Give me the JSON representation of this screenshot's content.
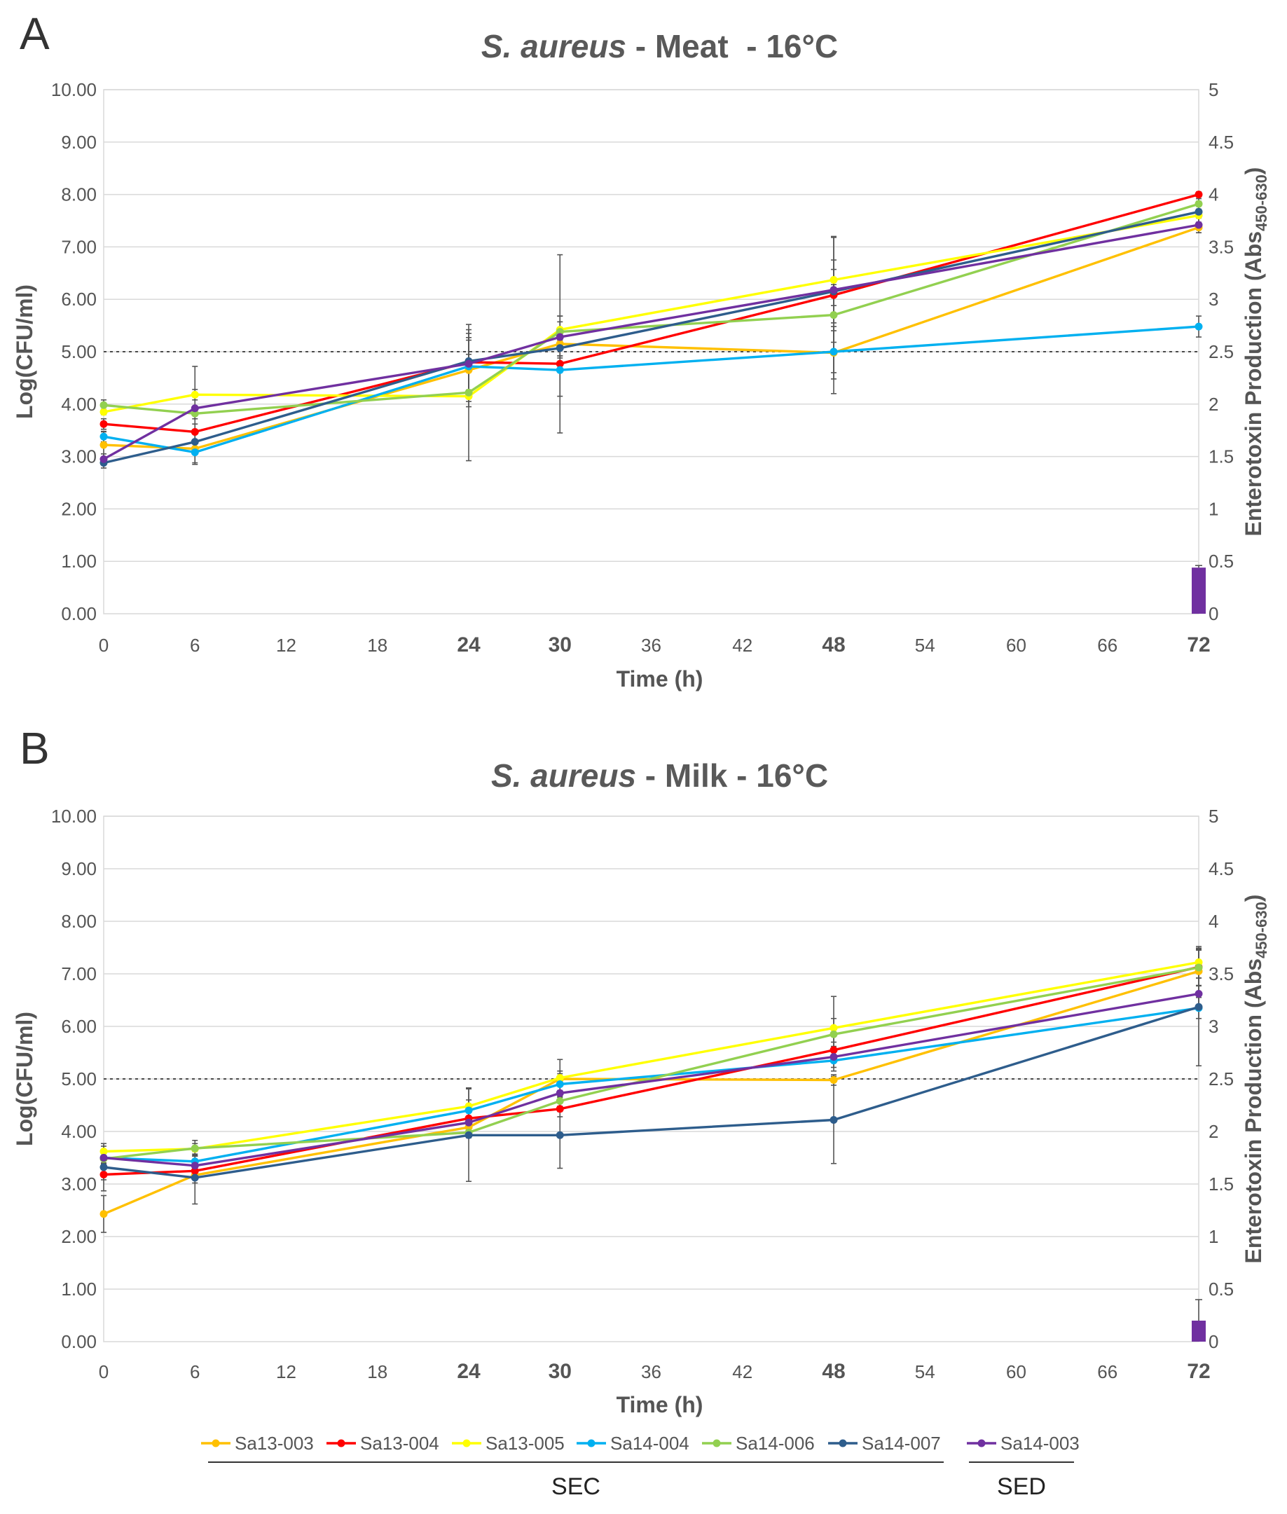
{
  "legend": [
    {
      "name": "Sa13-003",
      "color": "#FFC000"
    },
    {
      "name": "Sa13-004",
      "color": "#FF0000"
    },
    {
      "name": "Sa13-005",
      "color": "#FFFF00"
    },
    {
      "name": "Sa14-004",
      "color": "#00B0F0"
    },
    {
      "name": "Sa14-006",
      "color": "#92D050"
    },
    {
      "name": "Sa14-007",
      "color": "#2E5D8C"
    },
    {
      "name": "Sa14-003",
      "color": "#7030A0"
    }
  ],
  "groups": [
    {
      "label": "SEC",
      "members": [
        "Sa13-003",
        "Sa13-004",
        "Sa13-005",
        "Sa14-004",
        "Sa14-006",
        "Sa14-007"
      ]
    },
    {
      "label": "SED",
      "members": [
        "Sa14-003"
      ]
    }
  ],
  "chart_data": [
    {
      "panel": "A",
      "type": "line",
      "title_italic": "S. aureus",
      "title_rest": " - Meat  - 16°C",
      "xlabel": "Time (h)",
      "ylabel": "Log(CFU/ml)",
      "y2label_prefix": "Enterotoxin Production (Abs",
      "y2label_sub": "450-630",
      "y2label_suffix": ")",
      "xlim": [
        0,
        72
      ],
      "ylim": [
        0,
        10
      ],
      "y2lim": [
        0,
        5
      ],
      "x_ticks": [
        0,
        6,
        12,
        18,
        24,
        30,
        36,
        42,
        48,
        54,
        60,
        66,
        72
      ],
      "x_ticks_bold": [
        24,
        30,
        48,
        72
      ],
      "y_ticks": [
        "0.00",
        "1.00",
        "2.00",
        "3.00",
        "4.00",
        "5.00",
        "6.00",
        "7.00",
        "8.00",
        "9.00",
        "10.00"
      ],
      "y2_ticks": [
        "0",
        "0.5",
        "1",
        "1.5",
        "2",
        "2.5",
        "3",
        "3.5",
        "4",
        "4.5",
        "5"
      ],
      "threshold": 5.0,
      "grid": true,
      "x": [
        0,
        6,
        24,
        30,
        48,
        72
      ],
      "series": [
        {
          "name": "Sa13-003",
          "values": [
            3.22,
            3.15,
            4.65,
            5.15,
            4.98,
            7.37
          ],
          "errors": [
            0.25,
            0.3,
            0.7,
            1.7,
            0.5,
            0.1
          ]
        },
        {
          "name": "Sa13-004",
          "values": [
            3.62,
            3.47,
            4.8,
            4.77,
            6.08,
            8.0
          ],
          "errors": [
            0.1,
            0.15,
            0.15,
            0.15,
            0.2,
            0.05
          ]
        },
        {
          "name": "Sa13-005",
          "values": [
            3.85,
            4.18,
            4.15,
            5.42,
            6.37,
            7.6
          ],
          "errors": [
            0.05,
            0.1,
            0.1,
            0.15,
            0.2,
            0.05
          ]
        },
        {
          "name": "Sa14-004",
          "values": [
            3.38,
            3.08,
            4.72,
            4.65,
            5.0,
            5.48
          ],
          "errors": [
            0.1,
            0.2,
            0.5,
            0.5,
            0.4,
            0.2
          ]
        },
        {
          "name": "Sa14-006",
          "values": [
            3.98,
            3.82,
            4.22,
            5.38,
            5.7,
            7.82
          ],
          "errors": [
            0.1,
            0.1,
            1.3,
            0.3,
            1.5,
            0.1
          ]
        },
        {
          "name": "Sa14-007",
          "values": [
            2.88,
            3.28,
            4.82,
            5.07,
            6.15,
            7.67
          ],
          "errors": [
            0.1,
            0.2,
            0.6,
            0.15,
            0.6,
            0.2
          ]
        },
        {
          "name": "Sa14-003",
          "values": [
            2.95,
            3.92,
            4.77,
            5.28,
            6.18,
            7.42
          ],
          "errors": [
            0.1,
            0.8,
            0.5,
            0.4,
            1.0,
            0.15
          ]
        }
      ],
      "bars": [
        {
          "x": 72,
          "value": 0.44,
          "error": 0.02,
          "series": "Sa14-003"
        }
      ]
    },
    {
      "panel": "B",
      "type": "line",
      "title_italic": "S. aureus",
      "title_rest": " - Milk - 16°C",
      "xlabel": "Time (h)",
      "ylabel": "Log(CFU/ml)",
      "y2label_prefix": "Enterotoxin Production (Abs",
      "y2label_sub": "450-630",
      "y2label_suffix": ")",
      "xlim": [
        0,
        72
      ],
      "ylim": [
        0,
        10
      ],
      "y2lim": [
        0,
        5
      ],
      "x_ticks": [
        0,
        6,
        12,
        18,
        24,
        30,
        36,
        42,
        48,
        54,
        60,
        66,
        72
      ],
      "x_ticks_bold": [
        24,
        30,
        48,
        72
      ],
      "y_ticks": [
        "0.00",
        "1.00",
        "2.00",
        "3.00",
        "4.00",
        "5.00",
        "6.00",
        "7.00",
        "8.00",
        "9.00",
        "10.00"
      ],
      "y2_ticks": [
        "0",
        "0.5",
        "1",
        "1.5",
        "2",
        "2.5",
        "3",
        "3.5",
        "4",
        "4.5",
        "5"
      ],
      "threshold": 5.0,
      "grid": true,
      "x": [
        0,
        6,
        24,
        30,
        48,
        72
      ],
      "series": [
        {
          "name": "Sa13-003",
          "values": [
            2.43,
            3.17,
            4.08,
            5.0,
            4.98,
            7.05
          ],
          "errors": [
            0.35,
            0.15,
            0.15,
            0.1,
            0.1,
            0.4
          ]
        },
        {
          "name": "Sa13-004",
          "values": [
            3.18,
            3.25,
            4.25,
            4.43,
            5.55,
            7.13
          ],
          "errors": [
            0.1,
            0.1,
            0.15,
            0.15,
            0.15,
            0.35
          ]
        },
        {
          "name": "Sa13-005",
          "values": [
            3.62,
            3.67,
            4.48,
            5.02,
            5.97,
            7.22
          ],
          "errors": [
            0.1,
            0.1,
            0.35,
            0.35,
            0.6,
            0.3
          ]
        },
        {
          "name": "Sa14-004",
          "values": [
            3.5,
            3.43,
            4.4,
            4.9,
            5.35,
            6.35
          ],
          "errors": [
            0.1,
            0.1,
            0.2,
            0.25,
            0.2,
            0.2
          ]
        },
        {
          "name": "Sa14-006",
          "values": [
            3.48,
            3.68,
            3.98,
            4.58,
            5.85,
            7.12
          ],
          "errors": [
            0.1,
            0.15,
            0.1,
            0.2,
            0.3,
            0.35
          ]
        },
        {
          "name": "Sa14-007",
          "values": [
            3.32,
            3.12,
            3.93,
            3.93,
            4.22,
            6.37
          ],
          "errors": [
            0.45,
            0.5,
            0.88,
            0.63,
            0.83,
            1.12
          ]
        },
        {
          "name": "Sa14-003",
          "values": [
            3.5,
            3.35,
            4.17,
            4.73,
            5.42,
            6.62
          ],
          "errors": [
            0.1,
            0.2,
            0.2,
            0.25,
            0.2,
            0.3
          ]
        }
      ],
      "bars": [
        {
          "x": 72,
          "value": 0.2,
          "error": 0.2,
          "series": "Sa14-003"
        }
      ]
    }
  ]
}
